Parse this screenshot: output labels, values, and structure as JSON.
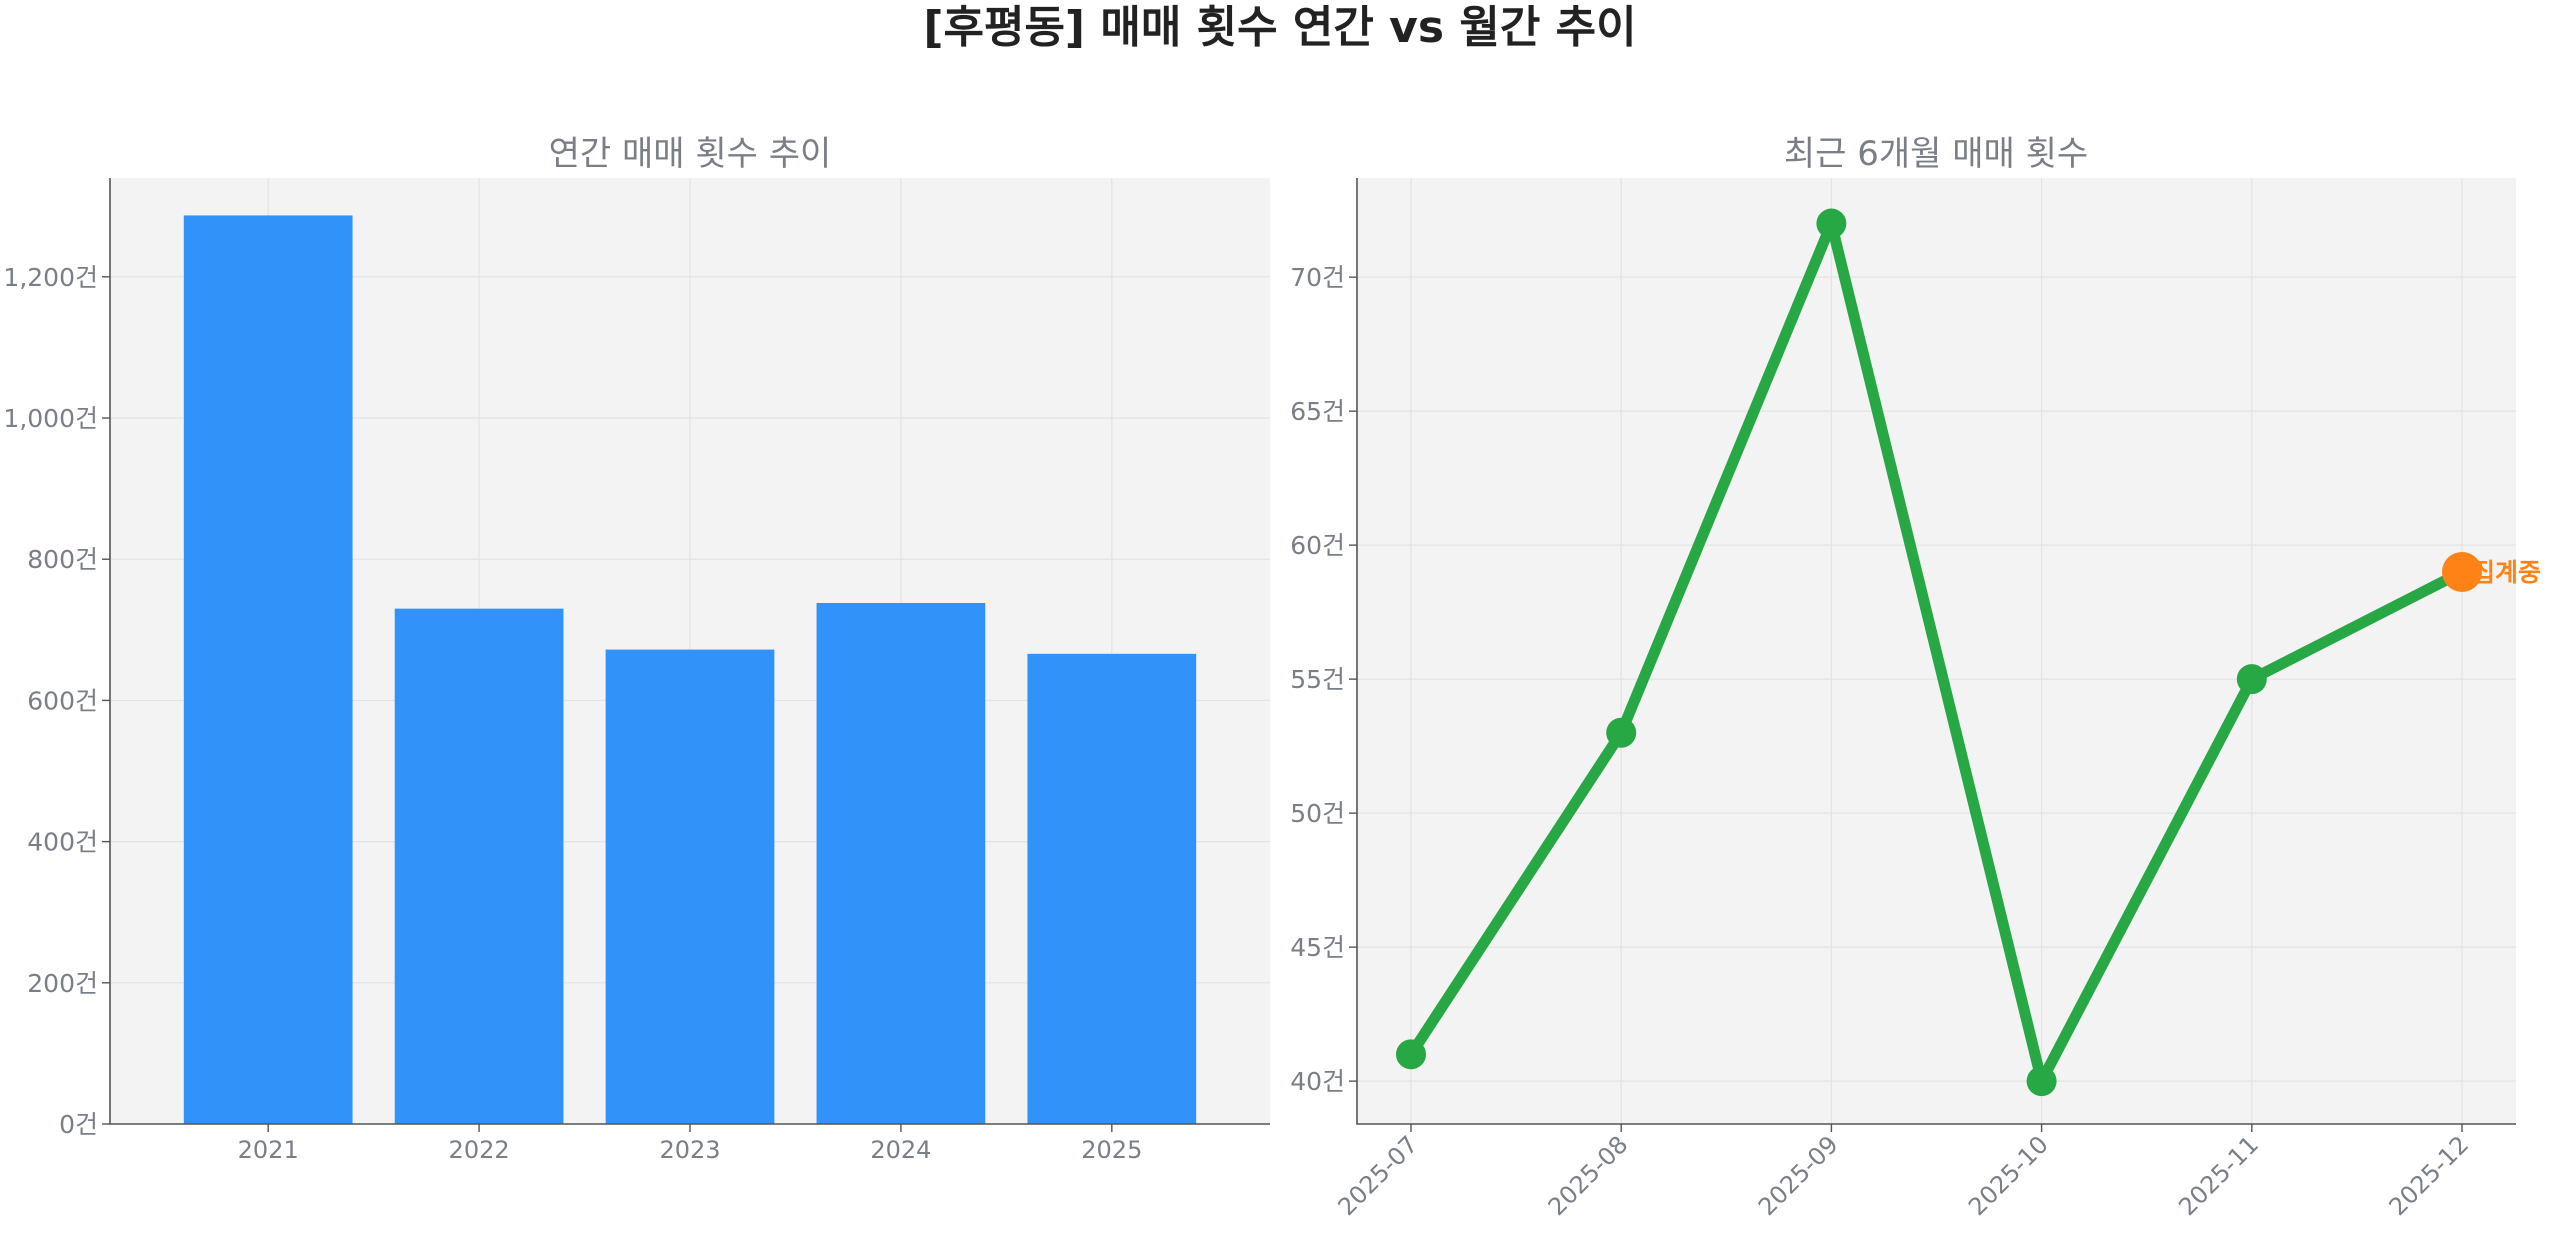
{
  "suptitle": "[후평동] 매매 횟수 연간 vs 월간 추이",
  "colors": {
    "bar": "#3193fa",
    "line": "#28a745",
    "highlight": "#ff8216",
    "plot_bg": "#f3f3f3"
  },
  "chart_data": [
    {
      "type": "bar",
      "title": "연간 매매 횟수 추이",
      "categories": [
        "2021",
        "2022",
        "2023",
        "2024",
        "2025"
      ],
      "values": [
        1287,
        730,
        672,
        738,
        666
      ],
      "ylim": [
        0,
        1340
      ],
      "yticks": [
        0,
        200,
        400,
        600,
        800,
        1000,
        1200
      ],
      "ytick_labels": [
        "0건",
        "200건",
        "400건",
        "600건",
        "800건",
        "1,000건",
        "1,200건"
      ],
      "grid": true,
      "legend": "none"
    },
    {
      "type": "line",
      "title": "최근 6개월 매매 횟수",
      "categories": [
        "2025-07",
        "2025-08",
        "2025-09",
        "2025-10",
        "2025-11",
        "2025-12"
      ],
      "values": [
        41,
        53,
        72,
        40,
        55,
        59
      ],
      "ylim": [
        38.4,
        73.7
      ],
      "yticks": [
        40,
        45,
        50,
        55,
        60,
        65,
        70
      ],
      "ytick_labels": [
        "40건",
        "45건",
        "50건",
        "55건",
        "60건",
        "65건",
        "70건"
      ],
      "highlight_index": 5,
      "annotation": "집계중",
      "xtick_rotation": "45°",
      "grid": true,
      "legend": "none"
    }
  ]
}
